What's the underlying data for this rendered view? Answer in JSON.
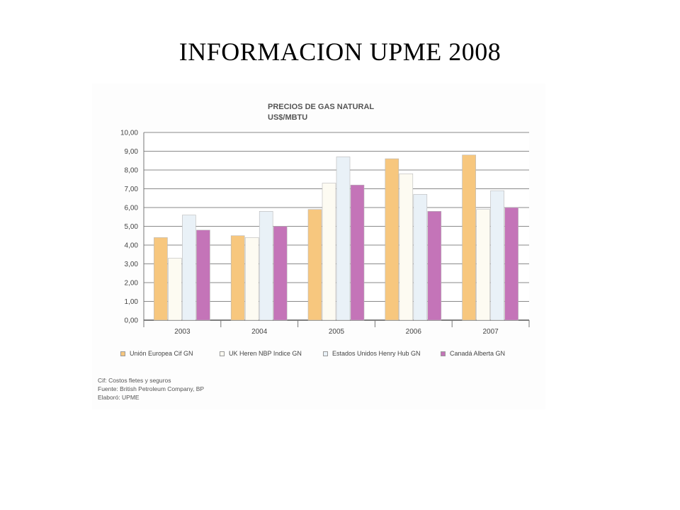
{
  "slide": {
    "title": "INFORMACION  UPME 2008"
  },
  "chart_data": {
    "type": "bar",
    "title": "PRECIOS DE GAS NATURAL",
    "subtitle": "US$/MBTU",
    "categories": [
      "2003",
      "2004",
      "2005",
      "2006",
      "2007"
    ],
    "series": [
      {
        "name": "Unión Europea Cif GN",
        "color": "#f7c77e",
        "values": [
          4.4,
          4.5,
          5.9,
          8.6,
          8.8
        ]
      },
      {
        "name": "UK Heren NBP Indice GN",
        "color": "#fdfbf2",
        "values": [
          3.3,
          4.4,
          7.3,
          7.8,
          5.9
        ]
      },
      {
        "name": "Estados Unidos  Henry Hub GN",
        "color": "#e9f1f7",
        "values": [
          5.6,
          5.8,
          8.7,
          6.7,
          6.9
        ]
      },
      {
        "name": "Canadá Alberta GN",
        "color": "#c474b8",
        "values": [
          4.8,
          5.0,
          7.2,
          5.8,
          6.0
        ]
      }
    ],
    "yticks": [
      "0,00",
      "1,00",
      "2,00",
      "3,00",
      "4,00",
      "5,00",
      "6,00",
      "7,00",
      "8,00",
      "9,00",
      "10,00"
    ],
    "ylim": [
      0,
      10
    ],
    "grid": true,
    "legend_position": "bottom"
  },
  "notes": [
    "Cif: Costos fletes y seguros",
    "Fuente: British Petroleum Company, BP",
    "Elaboró:  UPME"
  ]
}
